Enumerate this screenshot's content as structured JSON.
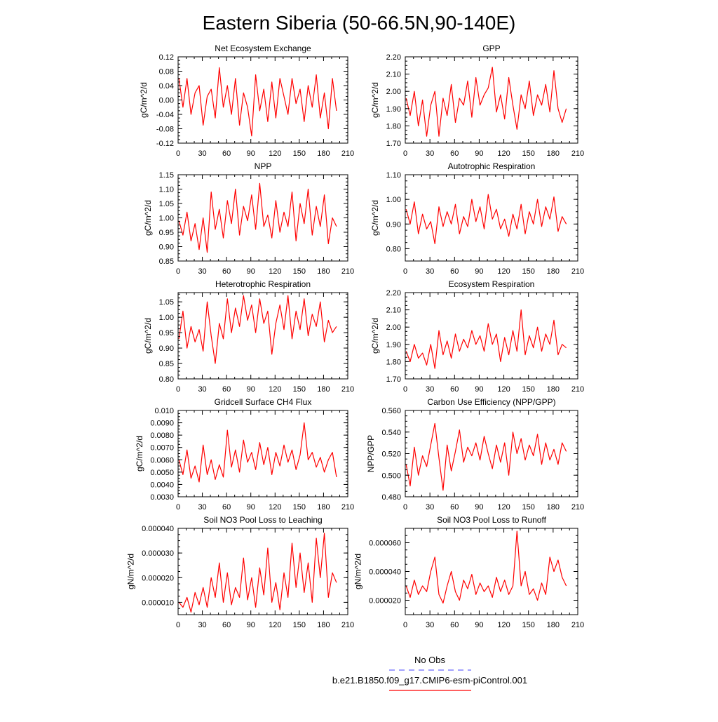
{
  "title": "Eastern Siberia (50-66.5N,90-140E)",
  "legend": {
    "obs_label": "No Obs",
    "obs_color": "#6a6aff",
    "model_label": "b.e21.B1850.f09_g17.CMIP6-esm-piControl.001",
    "model_color": "#ff0000"
  },
  "chart_data": [
    {
      "type": "line",
      "title": "Net Ecosystem Exchange",
      "ylabel": "gC/m^2/d",
      "xlim": [
        0,
        210
      ],
      "ylim": [
        -0.12,
        0.12
      ],
      "yticks": [
        -0.12,
        -0.08,
        -0.04,
        0.0,
        0.04,
        0.08,
        0.12
      ],
      "ytick_labels": [
        "-0.12",
        "-0.08",
        "-0.04",
        "0.00",
        "0.04",
        "0.08",
        "0.12"
      ],
      "x_start": 1,
      "x_step": 5,
      "series": [
        {
          "values": [
            0.06,
            -0.02,
            0.06,
            -0.04,
            0.02,
            0.04,
            -0.07,
            0.01,
            0.03,
            -0.05,
            0.09,
            -0.02,
            0.04,
            -0.04,
            0.06,
            -0.07,
            0.02,
            -0.02,
            -0.1,
            0.07,
            -0.03,
            0.03,
            -0.06,
            0.05,
            -0.05,
            0.06,
            0.01,
            -0.04,
            0.06,
            -0.01,
            0.03,
            -0.06,
            0.04,
            -0.02,
            0.07,
            -0.05,
            0.02,
            -0.08,
            0.06,
            -0.03
          ]
        }
      ]
    },
    {
      "type": "line",
      "title": "GPP",
      "ylabel": "gC/m^2/d",
      "xlim": [
        0,
        210
      ],
      "ylim": [
        1.7,
        2.2
      ],
      "yticks": [
        1.7,
        1.8,
        1.9,
        2.0,
        2.1,
        2.2
      ],
      "ytick_labels": [
        "1.70",
        "1.80",
        "1.90",
        "2.00",
        "2.10",
        "2.20"
      ],
      "x_start": 1,
      "x_step": 5,
      "series": [
        {
          "values": [
            1.96,
            1.86,
            2.0,
            1.8,
            1.95,
            1.74,
            1.92,
            2.0,
            1.74,
            1.96,
            1.86,
            2.04,
            1.82,
            1.96,
            1.92,
            2.06,
            1.85,
            2.08,
            1.92,
            1.98,
            2.02,
            2.14,
            1.88,
            1.98,
            1.84,
            2.08,
            1.92,
            1.78,
            1.98,
            1.9,
            2.06,
            1.86,
            1.98,
            1.92,
            2.04,
            1.88,
            2.12,
            1.9,
            1.82,
            1.9
          ]
        }
      ]
    },
    {
      "type": "line",
      "title": "NPP",
      "ylabel": "gC/m^2/d",
      "xlim": [
        0,
        210
      ],
      "ylim": [
        0.85,
        1.15
      ],
      "yticks": [
        0.85,
        0.9,
        0.95,
        1.0,
        1.05,
        1.1,
        1.15
      ],
      "ytick_labels": [
        "0.85",
        "0.90",
        "0.95",
        "1.00",
        "1.05",
        "1.10",
        "1.15"
      ],
      "x_start": 1,
      "x_step": 5,
      "series": [
        {
          "values": [
            0.99,
            0.94,
            1.02,
            0.92,
            0.98,
            0.89,
            1.0,
            0.88,
            1.09,
            0.96,
            1.03,
            0.93,
            1.06,
            0.98,
            1.1,
            0.94,
            1.04,
            0.99,
            1.08,
            0.96,
            1.12,
            0.97,
            1.01,
            0.93,
            1.06,
            0.95,
            1.02,
            0.97,
            1.09,
            0.92,
            1.05,
            0.98,
            1.1,
            0.94,
            1.04,
            0.97,
            1.08,
            0.91,
            1.0,
            0.97
          ]
        }
      ]
    },
    {
      "type": "line",
      "title": "Autotrophic Respiration",
      "ylabel": "gC/m^2/d",
      "xlim": [
        0,
        210
      ],
      "ylim": [
        0.75,
        1.1
      ],
      "yticks": [
        0.8,
        0.9,
        1.0,
        1.1
      ],
      "ytick_labels": [
        "0.80",
        "0.90",
        "1.00",
        "1.10"
      ],
      "x_start": 1,
      "x_step": 5,
      "series": [
        {
          "values": [
            0.96,
            0.9,
            0.99,
            0.86,
            0.94,
            0.88,
            0.91,
            0.82,
            0.97,
            0.89,
            0.95,
            0.9,
            0.98,
            0.86,
            0.93,
            0.89,
            1.0,
            0.91,
            0.97,
            0.88,
            1.02,
            0.92,
            0.96,
            0.88,
            0.92,
            0.85,
            0.94,
            0.88,
            0.98,
            0.86,
            0.95,
            0.9,
            1.0,
            0.89,
            0.97,
            0.92,
            1.01,
            0.87,
            0.93,
            0.9
          ]
        }
      ]
    },
    {
      "type": "line",
      "title": "Heterotrophic Respiration",
      "ylabel": "gC/m^2/d",
      "xlim": [
        0,
        210
      ],
      "ylim": [
        0.8,
        1.08
      ],
      "yticks": [
        0.8,
        0.85,
        0.9,
        0.95,
        1.0,
        1.05
      ],
      "ytick_labels": [
        "0.80",
        "0.85",
        "0.90",
        "0.95",
        "1.00",
        "1.05"
      ],
      "x_start": 1,
      "x_step": 5,
      "series": [
        {
          "values": [
            0.93,
            1.02,
            0.9,
            0.97,
            0.92,
            0.96,
            0.89,
            1.05,
            0.94,
            0.85,
            0.98,
            0.93,
            1.06,
            0.95,
            1.03,
            0.97,
            1.07,
            0.99,
            1.04,
            0.95,
            1.06,
            0.98,
            1.02,
            0.88,
            0.98,
            1.04,
            0.96,
            1.07,
            0.93,
            1.02,
            0.96,
            1.06,
            0.94,
            1.01,
            0.97,
            1.05,
            0.92,
            0.99,
            0.95,
            0.97
          ]
        }
      ]
    },
    {
      "type": "line",
      "title": "Ecosystem Respiration",
      "ylabel": "gC/m^2/d",
      "xlim": [
        0,
        210
      ],
      "ylim": [
        1.7,
        2.2
      ],
      "yticks": [
        1.7,
        1.8,
        1.9,
        2.0,
        2.1,
        2.2
      ],
      "ytick_labels": [
        "1.70",
        "1.80",
        "1.90",
        "2.00",
        "2.10",
        "2.20"
      ],
      "x_start": 1,
      "x_step": 5,
      "series": [
        {
          "values": [
            1.86,
            1.8,
            1.9,
            1.82,
            1.85,
            1.78,
            1.9,
            1.76,
            1.98,
            1.84,
            1.92,
            1.82,
            1.96,
            1.86,
            1.93,
            1.88,
            1.98,
            1.9,
            1.95,
            1.86,
            2.02,
            1.9,
            1.96,
            1.8,
            1.94,
            1.84,
            1.98,
            1.86,
            2.1,
            1.84,
            1.95,
            1.88,
            2.0,
            1.86,
            1.96,
            1.9,
            2.04,
            1.84,
            1.9,
            1.88
          ]
        }
      ]
    },
    {
      "type": "line",
      "title": "Gridcell Surface CH4 Flux",
      "ylabel": "gC/m^2/d",
      "xlim": [
        0,
        210
      ],
      "ylim": [
        0.003,
        0.01
      ],
      "yticks": [
        0.003,
        0.004,
        0.005,
        0.006,
        0.007,
        0.008,
        0.009,
        0.01
      ],
      "ytick_labels": [
        "0.0030",
        "0.0040",
        "0.0050",
        "0.0060",
        "0.0070",
        "0.0080",
        "0.0090",
        "0.010"
      ],
      "x_start": 1,
      "x_step": 5,
      "series": [
        {
          "values": [
            0.006,
            0.0048,
            0.0068,
            0.0045,
            0.0055,
            0.0042,
            0.0072,
            0.0048,
            0.006,
            0.0044,
            0.0056,
            0.0046,
            0.0084,
            0.0054,
            0.0068,
            0.005,
            0.0076,
            0.0058,
            0.0066,
            0.0052,
            0.0074,
            0.0056,
            0.007,
            0.0048,
            0.0066,
            0.0055,
            0.0072,
            0.0058,
            0.0068,
            0.0052,
            0.0064,
            0.009,
            0.006,
            0.0066,
            0.0054,
            0.0062,
            0.005,
            0.006,
            0.0066,
            0.0046
          ]
        }
      ]
    },
    {
      "type": "line",
      "title": "Carbon Use Efficiency (NPP/GPP)",
      "ylabel": "NPP/GPP",
      "xlim": [
        0,
        210
      ],
      "ylim": [
        0.48,
        0.56
      ],
      "yticks": [
        0.48,
        0.5,
        0.52,
        0.54,
        0.56
      ],
      "ytick_labels": [
        "0.480",
        "0.500",
        "0.520",
        "0.540",
        "0.560"
      ],
      "x_start": 1,
      "x_step": 5,
      "series": [
        {
          "values": [
            0.51,
            0.49,
            0.526,
            0.5,
            0.518,
            0.508,
            0.528,
            0.548,
            0.516,
            0.486,
            0.528,
            0.504,
            0.522,
            0.542,
            0.512,
            0.526,
            0.518,
            0.53,
            0.514,
            0.536,
            0.52,
            0.506,
            0.528,
            0.512,
            0.53,
            0.5,
            0.54,
            0.52,
            0.534,
            0.514,
            0.528,
            0.518,
            0.538,
            0.51,
            0.53,
            0.514,
            0.524,
            0.51,
            0.53,
            0.522
          ]
        }
      ]
    },
    {
      "type": "line",
      "title": "Soil NO3 Pool Loss to Leaching",
      "ylabel": "gN/m^2/d",
      "xlim": [
        0,
        210
      ],
      "ylim": [
        5e-06,
        4e-05
      ],
      "yticks": [
        1e-05,
        2e-05,
        3e-05,
        4e-05
      ],
      "ytick_labels": [
        "0.000010",
        "0.000020",
        "0.000030",
        "0.000040"
      ],
      "x_start": 1,
      "x_step": 5,
      "series": [
        {
          "values": [
            1e-05,
            8e-06,
            1.2e-05,
            6e-06,
            1.4e-05,
            9e-06,
            1.6e-05,
            8e-06,
            2e-05,
            1.2e-05,
            2.6e-05,
            1e-05,
            2.2e-05,
            9e-06,
            1.6e-05,
            1.2e-05,
            2.8e-05,
            1.1e-05,
            2e-05,
            8e-06,
            2.4e-05,
            1.3e-05,
            3.2e-05,
            1e-05,
            1.8e-05,
            7e-06,
            2.2e-05,
            1.2e-05,
            3.4e-05,
            1.6e-05,
            3e-05,
            1.4e-05,
            2.6e-05,
            1e-05,
            3.6e-05,
            2e-05,
            3.8e-05,
            1.2e-05,
            2.2e-05,
            1.8e-05
          ]
        }
      ]
    },
    {
      "type": "line",
      "title": "Soil NO3 Pool Loss to Runoff",
      "ylabel": "gN/m^2/d",
      "xlim": [
        0,
        210
      ],
      "ylim": [
        1e-05,
        7e-05
      ],
      "yticks": [
        2e-05,
        4e-05,
        6e-05
      ],
      "ytick_labels": [
        "0.000020",
        "0.000040",
        "0.000060"
      ],
      "x_start": 1,
      "x_step": 5,
      "series": [
        {
          "values": [
            3e-05,
            2.2e-05,
            3.4e-05,
            2.4e-05,
            3e-05,
            2.6e-05,
            4e-05,
            5e-05,
            2.4e-05,
            1.8e-05,
            3e-05,
            4e-05,
            2.6e-05,
            2e-05,
            3.4e-05,
            2.8e-05,
            3.8e-05,
            2.4e-05,
            3.2e-05,
            2.6e-05,
            3e-05,
            2.2e-05,
            3.6e-05,
            2.6e-05,
            3.4e-05,
            2.4e-05,
            3e-05,
            6.8e-05,
            3e-05,
            4e-05,
            2.4e-05,
            2.8e-05,
            2e-05,
            3.2e-05,
            2.4e-05,
            5e-05,
            4e-05,
            4.8e-05,
            3.6e-05,
            3e-05
          ]
        }
      ]
    }
  ]
}
